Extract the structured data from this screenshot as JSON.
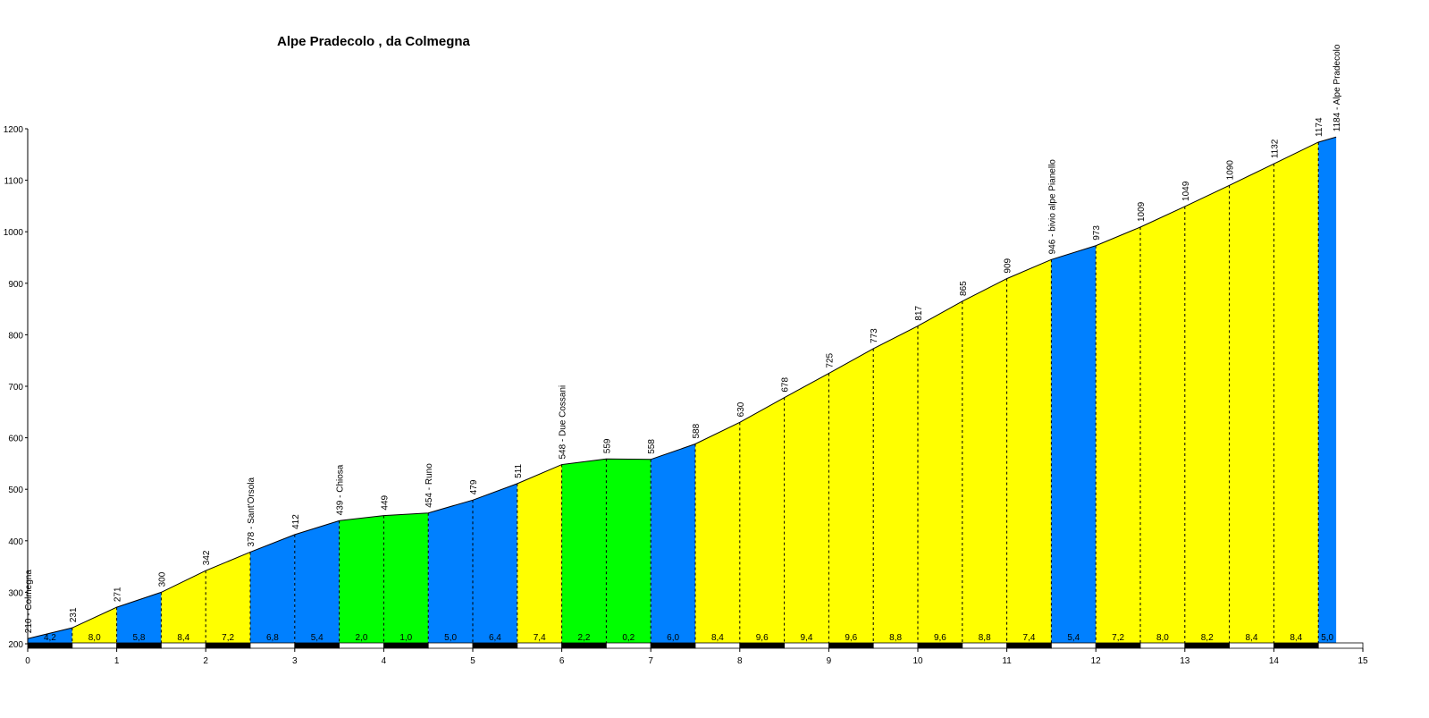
{
  "chart_data": {
    "type": "area",
    "title": "Alpe Pradecolo , da Colmegna",
    "xlabel": "",
    "ylabel": "",
    "xlim": [
      0,
      15
    ],
    "ylim": [
      200,
      1200
    ],
    "x_ticks": [
      "0",
      "1",
      "2",
      "3",
      "4",
      "5",
      "6",
      "7",
      "8",
      "9",
      "10",
      "11",
      "12",
      "13",
      "14",
      "15"
    ],
    "y_ticks": [
      "200",
      "300",
      "400",
      "500",
      "600",
      "700",
      "800",
      "900",
      "1000",
      "1100",
      "1200"
    ],
    "grid": false,
    "legend": "none",
    "colors": {
      "blue": "#0080ff",
      "yellow": "#ffff00",
      "green": "#00ff00",
      "outline": "#000000"
    },
    "profile_x": [
      0,
      0.5,
      1,
      1.5,
      2,
      2.5,
      3,
      3.5,
      4,
      4.5,
      5,
      5.5,
      6,
      6.5,
      7,
      7.5,
      8,
      8.5,
      9,
      9.5,
      10,
      10.5,
      11,
      11.5,
      12,
      12.5,
      13,
      13.5,
      14,
      14.5,
      14.7
    ],
    "elevations": [
      210,
      231,
      271,
      300,
      342,
      378,
      412,
      439,
      449,
      454,
      479,
      511,
      548,
      559,
      558,
      588,
      630,
      678,
      725,
      773,
      817,
      865,
      909,
      946,
      973,
      1009,
      1049,
      1090,
      1132,
      1174,
      1184
    ],
    "point_labels": [
      "210 - Colmegna",
      "231",
      "271",
      "300",
      "342",
      "378 - Sant'Orsola",
      "412",
      "439 - Chiosa",
      "449",
      "454 - Runo",
      "479",
      "511",
      "548 - Due Cossani",
      "559",
      "558",
      "588",
      "630",
      "678",
      "725",
      "773",
      "817",
      "865",
      "909",
      "946 - bivio alpe Pianello",
      "973",
      "1009",
      "1049",
      "1090",
      "1132",
      "1174",
      "1184 - Alpe Pradecolo"
    ],
    "segment_gradients": [
      "4,2",
      "8,0",
      "5,8",
      "8,4",
      "7,2",
      "6,8",
      "5,4",
      "2,0",
      "1,0",
      "5,0",
      "6,4",
      "7,4",
      "2,2",
      "0,2",
      "6,0",
      "8,4",
      "9,6",
      "9,4",
      "9,6",
      "8,8",
      "9,6",
      "8,8",
      "7,4",
      "5,4",
      "7,2",
      "8,0",
      "8,2",
      "8,4",
      "8,4",
      "5,0"
    ],
    "segment_colors": [
      "blue",
      "yellow",
      "blue",
      "yellow",
      "yellow",
      "blue",
      "blue",
      "green",
      "green",
      "blue",
      "blue",
      "yellow",
      "green",
      "green",
      "blue",
      "yellow",
      "yellow",
      "yellow",
      "yellow",
      "yellow",
      "yellow",
      "yellow",
      "yellow",
      "blue",
      "yellow",
      "yellow",
      "yellow",
      "yellow",
      "yellow",
      "blue"
    ]
  }
}
